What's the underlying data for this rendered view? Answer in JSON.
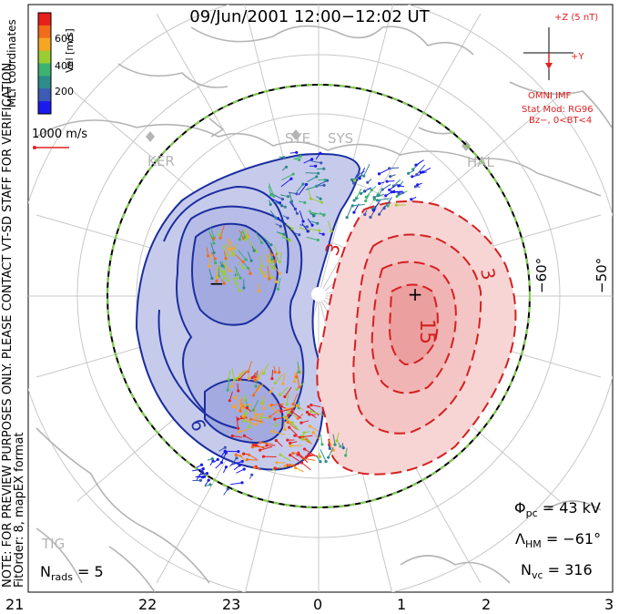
{
  "title": "09/Jun/2001 12:00−12:02 UT",
  "notice": {
    "line1": "NOTE: FOR PREVIEW PURPOSES ONLY. PLEASE CONTACT VT-SD STAFF FOR VERIFICATION.",
    "line2": "FitOrder: 8, mapEX format"
  },
  "coords_label": "MLT coordinates",
  "velocity_scale": {
    "label": "Vel [m/s]",
    "ticks": [
      "600",
      "400",
      "200"
    ],
    "colors": [
      "#e8201c",
      "#f26b1a",
      "#f5a623",
      "#9acd32",
      "#3cb371",
      "#2e8b8b",
      "#3b5bb5",
      "#1a1aee"
    ]
  },
  "reference_vector": {
    "label": "1000 m/s",
    "color": "#e02020"
  },
  "imf": {
    "z_label": "+Z (5 nT)",
    "y_label": "+Y",
    "source": "OMNI IMF",
    "model": "Stat Mod: RG96",
    "condition": "Bz−, 0<BT<4"
  },
  "stations": [
    "KER",
    "SYE",
    "SYS",
    "HAL"
  ],
  "lat_labels": [
    "−60°",
    "−50°"
  ],
  "potential_labels": {
    "neg_extremum": "−",
    "pos_extremum": "+",
    "contours": [
      "3",
      "3",
      "15",
      "9"
    ]
  },
  "stats": {
    "phi_pc_sym": "Φ",
    "phi_pc_sub": "pc",
    "phi_pc_val": "= 43 kV",
    "lambda_sym": "Λ",
    "lambda_sub": "HM",
    "lambda_val": "= −61°",
    "nvc_sym": "N",
    "nvc_sub": "vc",
    "nvc_val": "= 316",
    "nrads_sym": "N",
    "nrads_sub": "rads",
    "nrads_val": "= 5"
  },
  "corner_label": "TIG",
  "mlt_ticks": [
    "21",
    "22",
    "23",
    "0",
    "1",
    "2",
    "3"
  ],
  "colors": {
    "neg_cell": "#c7cbeb",
    "neg_cell_core": "#a3aadf",
    "neg_contour": "#1a2ea0",
    "pos_cell": "#f8d5d5",
    "pos_cell_core": "#f1b4b4",
    "pos_contour": "#d42020",
    "grid": "#c8c8c8",
    "coast": "#b4b4b4"
  }
}
